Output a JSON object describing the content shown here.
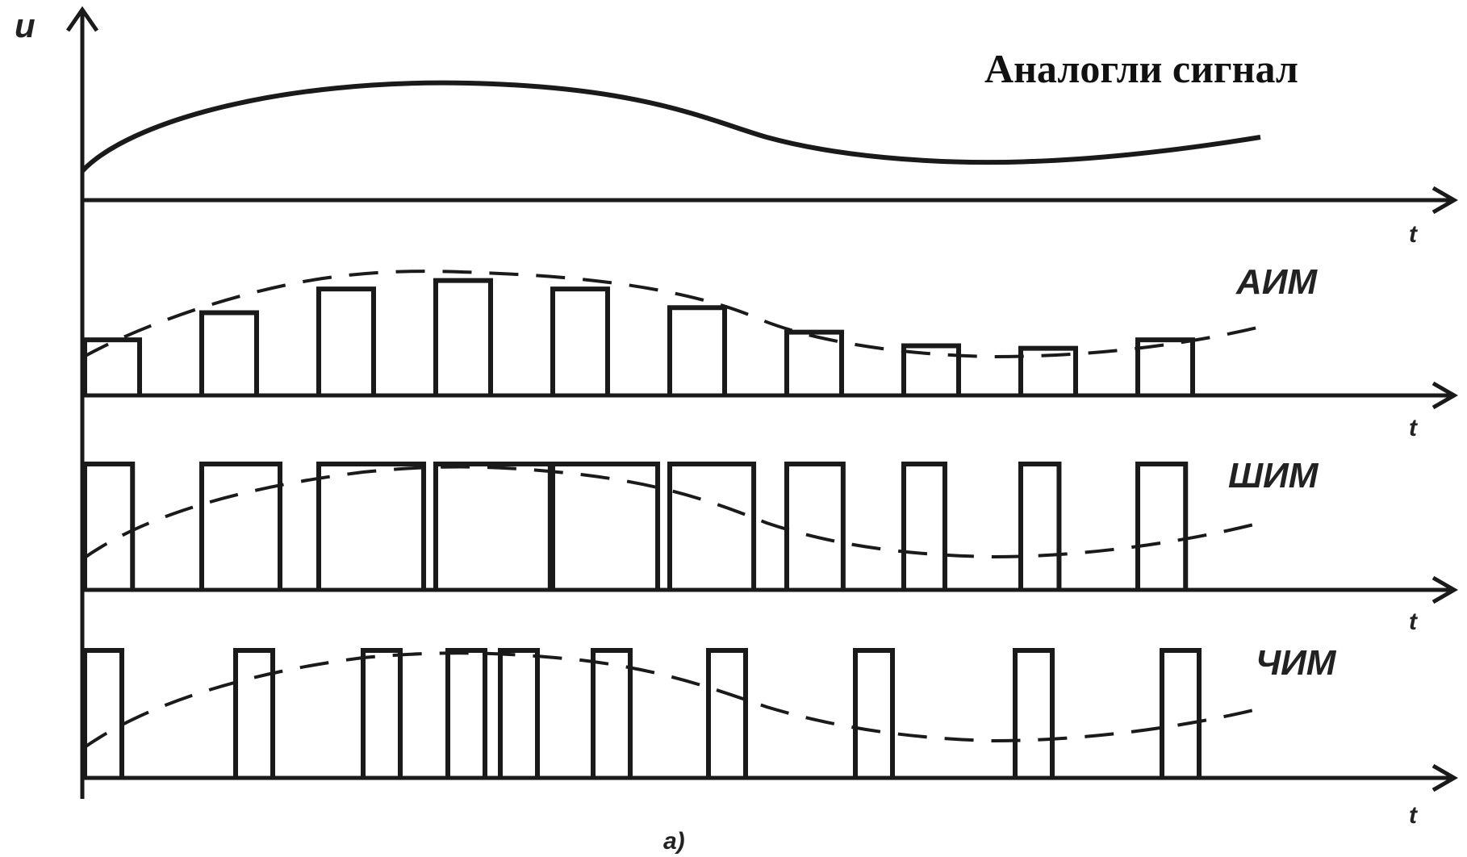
{
  "labels": {
    "u": "u",
    "analog": "Аналогли сигнал",
    "aim": "АИМ",
    "shim": "ШИМ",
    "chim": "ЧИМ",
    "t1": "t",
    "t2": "t",
    "t3": "t",
    "t4": "t",
    "caption": "a)"
  },
  "colors": {
    "ink": "#1a1a1a"
  },
  "signal": {
    "samples": [
      0.18,
      0.5,
      0.78,
      0.88,
      0.78,
      0.56,
      0.27,
      0.11,
      0.08,
      0.18
    ]
  }
}
